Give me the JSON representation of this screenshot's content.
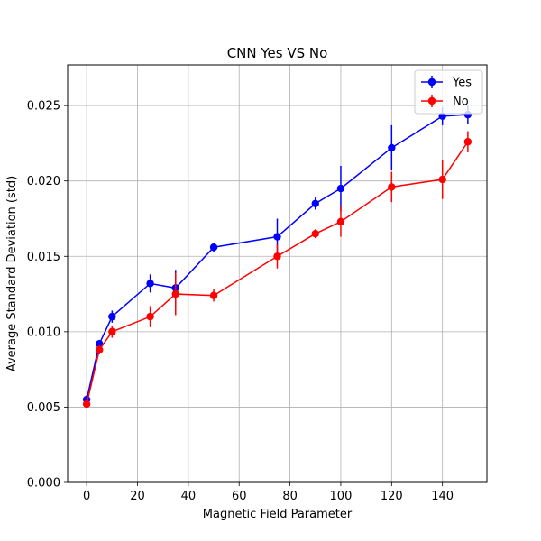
{
  "chart_data": {
    "type": "line",
    "title": "CNN Yes VS No",
    "xlabel": "Magnetic Field Parameter",
    "ylabel": "Average Standard Deviation (std)",
    "xlim": [
      -7.5,
      157.5
    ],
    "ylim": [
      0,
      0.0277
    ],
    "xticks": [
      0,
      20,
      40,
      60,
      80,
      100,
      120,
      140
    ],
    "xtick_labels": [
      "0",
      "20",
      "40",
      "60",
      "80",
      "100",
      "120",
      "140"
    ],
    "yticks": [
      0.0,
      0.005,
      0.01,
      0.015,
      0.02,
      0.025
    ],
    "ytick_labels": [
      "0.000",
      "0.005",
      "0.010",
      "0.015",
      "0.020",
      "0.025"
    ],
    "grid": true,
    "legend_position": "top-right",
    "x": [
      0,
      5,
      10,
      25,
      35,
      50,
      75,
      90,
      100,
      120,
      140,
      150
    ],
    "series": [
      {
        "name": "Yes",
        "color": "#0000ff",
        "values": [
          0.0055,
          0.0092,
          0.011,
          0.0132,
          0.0129,
          0.0156,
          0.0163,
          0.0185,
          0.0195,
          0.0222,
          0.0243,
          0.0244
        ],
        "errors": [
          0.0003,
          0.0002,
          0.0004,
          0.0006,
          0.0012,
          0.0003,
          0.0012,
          0.0004,
          0.0015,
          0.0015,
          0.0006,
          0.0006
        ]
      },
      {
        "name": "No",
        "color": "#ff0000",
        "values": [
          0.0052,
          0.0088,
          0.01,
          0.011,
          0.0125,
          0.0124,
          0.015,
          0.0165,
          0.0173,
          0.0196,
          0.0201,
          0.0226
        ],
        "errors": [
          0.0002,
          0.0003,
          0.0004,
          0.0007,
          0.0014,
          0.0004,
          0.0008,
          0.0003,
          0.001,
          0.001,
          0.0013,
          0.0007
        ]
      }
    ]
  }
}
